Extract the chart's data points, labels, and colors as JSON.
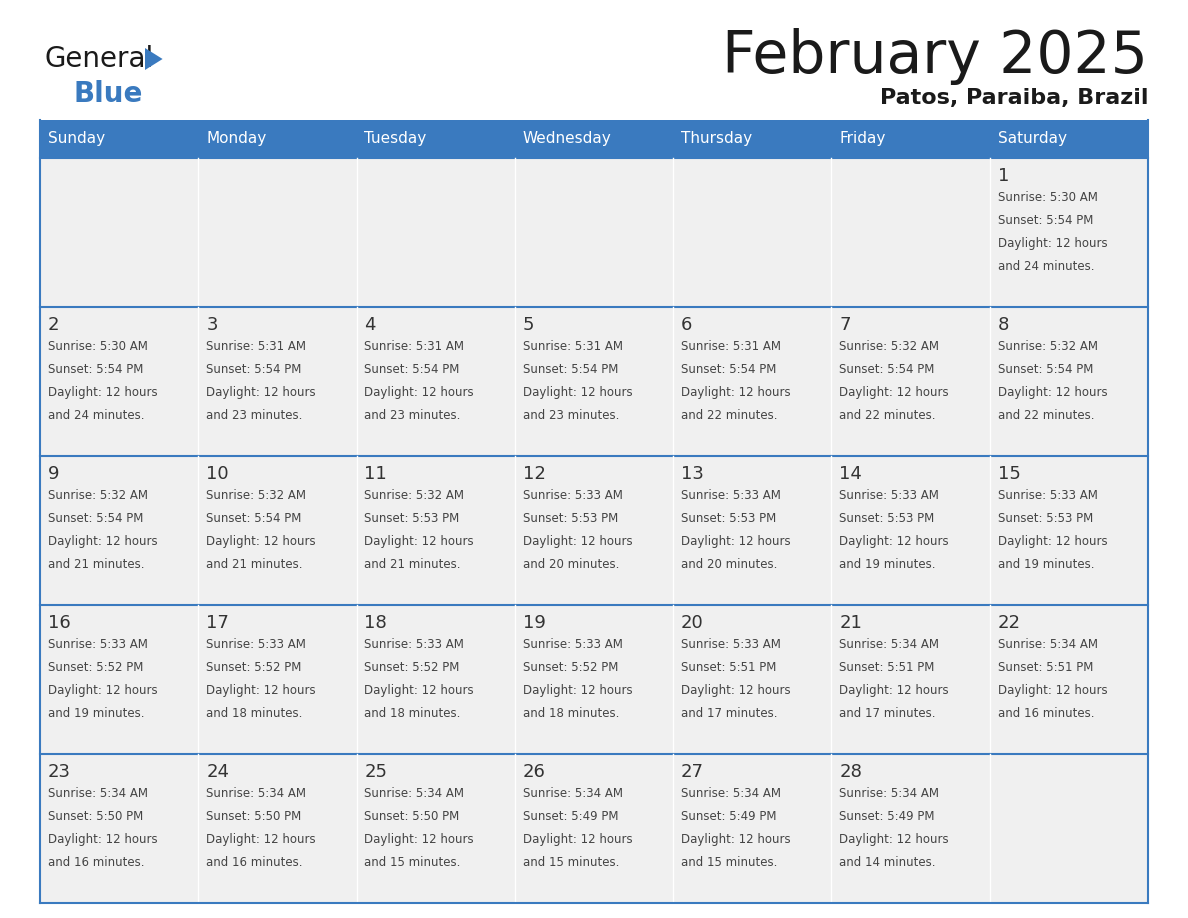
{
  "title": "February 2025",
  "subtitle": "Patos, Paraiba, Brazil",
  "header_bg": "#3a7abf",
  "header_text_color": "#ffffff",
  "day_names": [
    "Sunday",
    "Monday",
    "Tuesday",
    "Wednesday",
    "Thursday",
    "Friday",
    "Saturday"
  ],
  "cell_bg": "#f0f0f0",
  "cell_bg_white": "#ffffff",
  "border_color": "#3a7abf",
  "text_color": "#444444",
  "date_color": "#333333",
  "logo_general_color": "#1a1a1a",
  "logo_blue_color": "#3a7abf",
  "title_color": "#1a1a1a",
  "calendar": [
    [
      {
        "day": null,
        "sunrise": null,
        "sunset": null,
        "daylight": null
      },
      {
        "day": null,
        "sunrise": null,
        "sunset": null,
        "daylight": null
      },
      {
        "day": null,
        "sunrise": null,
        "sunset": null,
        "daylight": null
      },
      {
        "day": null,
        "sunrise": null,
        "sunset": null,
        "daylight": null
      },
      {
        "day": null,
        "sunrise": null,
        "sunset": null,
        "daylight": null
      },
      {
        "day": null,
        "sunrise": null,
        "sunset": null,
        "daylight": null
      },
      {
        "day": 1,
        "sunrise": "5:30 AM",
        "sunset": "5:54 PM",
        "daylight": "12 hours and 24 minutes."
      }
    ],
    [
      {
        "day": 2,
        "sunrise": "5:30 AM",
        "sunset": "5:54 PM",
        "daylight": "12 hours and 24 minutes."
      },
      {
        "day": 3,
        "sunrise": "5:31 AM",
        "sunset": "5:54 PM",
        "daylight": "12 hours and 23 minutes."
      },
      {
        "day": 4,
        "sunrise": "5:31 AM",
        "sunset": "5:54 PM",
        "daylight": "12 hours and 23 minutes."
      },
      {
        "day": 5,
        "sunrise": "5:31 AM",
        "sunset": "5:54 PM",
        "daylight": "12 hours and 23 minutes."
      },
      {
        "day": 6,
        "sunrise": "5:31 AM",
        "sunset": "5:54 PM",
        "daylight": "12 hours and 22 minutes."
      },
      {
        "day": 7,
        "sunrise": "5:32 AM",
        "sunset": "5:54 PM",
        "daylight": "12 hours and 22 minutes."
      },
      {
        "day": 8,
        "sunrise": "5:32 AM",
        "sunset": "5:54 PM",
        "daylight": "12 hours and 22 minutes."
      }
    ],
    [
      {
        "day": 9,
        "sunrise": "5:32 AM",
        "sunset": "5:54 PM",
        "daylight": "12 hours and 21 minutes."
      },
      {
        "day": 10,
        "sunrise": "5:32 AM",
        "sunset": "5:54 PM",
        "daylight": "12 hours and 21 minutes."
      },
      {
        "day": 11,
        "sunrise": "5:32 AM",
        "sunset": "5:53 PM",
        "daylight": "12 hours and 21 minutes."
      },
      {
        "day": 12,
        "sunrise": "5:33 AM",
        "sunset": "5:53 PM",
        "daylight": "12 hours and 20 minutes."
      },
      {
        "day": 13,
        "sunrise": "5:33 AM",
        "sunset": "5:53 PM",
        "daylight": "12 hours and 20 minutes."
      },
      {
        "day": 14,
        "sunrise": "5:33 AM",
        "sunset": "5:53 PM",
        "daylight": "12 hours and 19 minutes."
      },
      {
        "day": 15,
        "sunrise": "5:33 AM",
        "sunset": "5:53 PM",
        "daylight": "12 hours and 19 minutes."
      }
    ],
    [
      {
        "day": 16,
        "sunrise": "5:33 AM",
        "sunset": "5:52 PM",
        "daylight": "12 hours and 19 minutes."
      },
      {
        "day": 17,
        "sunrise": "5:33 AM",
        "sunset": "5:52 PM",
        "daylight": "12 hours and 18 minutes."
      },
      {
        "day": 18,
        "sunrise": "5:33 AM",
        "sunset": "5:52 PM",
        "daylight": "12 hours and 18 minutes."
      },
      {
        "day": 19,
        "sunrise": "5:33 AM",
        "sunset": "5:52 PM",
        "daylight": "12 hours and 18 minutes."
      },
      {
        "day": 20,
        "sunrise": "5:33 AM",
        "sunset": "5:51 PM",
        "daylight": "12 hours and 17 minutes."
      },
      {
        "day": 21,
        "sunrise": "5:34 AM",
        "sunset": "5:51 PM",
        "daylight": "12 hours and 17 minutes."
      },
      {
        "day": 22,
        "sunrise": "5:34 AM",
        "sunset": "5:51 PM",
        "daylight": "12 hours and 16 minutes."
      }
    ],
    [
      {
        "day": 23,
        "sunrise": "5:34 AM",
        "sunset": "5:50 PM",
        "daylight": "12 hours and 16 minutes."
      },
      {
        "day": 24,
        "sunrise": "5:34 AM",
        "sunset": "5:50 PM",
        "daylight": "12 hours and 16 minutes."
      },
      {
        "day": 25,
        "sunrise": "5:34 AM",
        "sunset": "5:50 PM",
        "daylight": "12 hours and 15 minutes."
      },
      {
        "day": 26,
        "sunrise": "5:34 AM",
        "sunset": "5:49 PM",
        "daylight": "12 hours and 15 minutes."
      },
      {
        "day": 27,
        "sunrise": "5:34 AM",
        "sunset": "5:49 PM",
        "daylight": "12 hours and 15 minutes."
      },
      {
        "day": 28,
        "sunrise": "5:34 AM",
        "sunset": "5:49 PM",
        "daylight": "12 hours and 14 minutes."
      },
      {
        "day": null,
        "sunrise": null,
        "sunset": null,
        "daylight": null
      }
    ]
  ]
}
